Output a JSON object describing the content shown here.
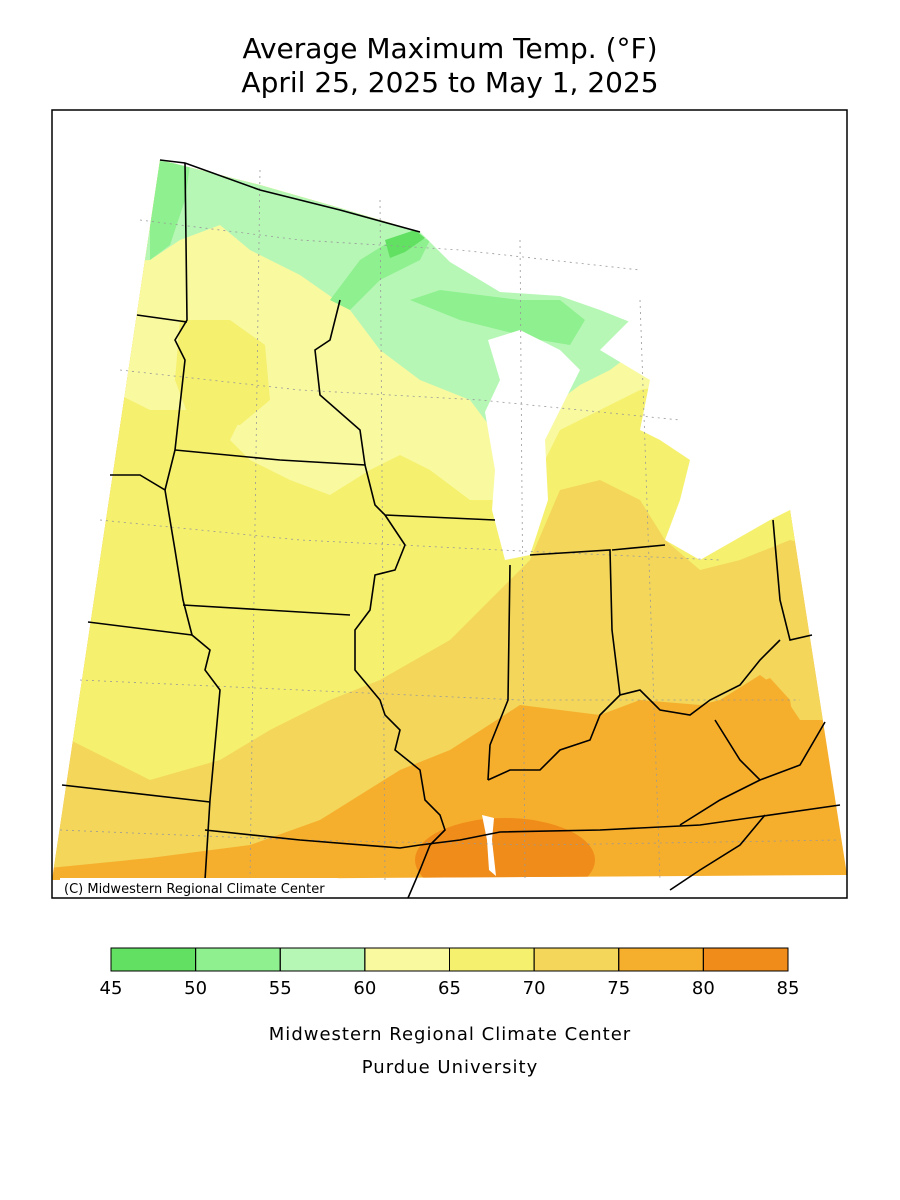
{
  "title": "Average Maximum Temp. (°F)",
  "subtitle": "April 25, 2025 to May 1, 2025",
  "credit": "(C) Midwestern Regional Climate Center",
  "legend": {
    "bins": [
      45,
      50,
      55,
      60,
      65,
      70,
      75,
      80,
      85
    ],
    "colors": [
      "#62e062",
      "#8ef08e",
      "#b6f7b6",
      "#f9f9a0",
      "#f5f06e",
      "#f3d65a",
      "#f6ae2d",
      "#ef8c1a"
    ]
  },
  "footer": [
    "Midwestern Regional Climate Center",
    "Purdue University"
  ]
}
